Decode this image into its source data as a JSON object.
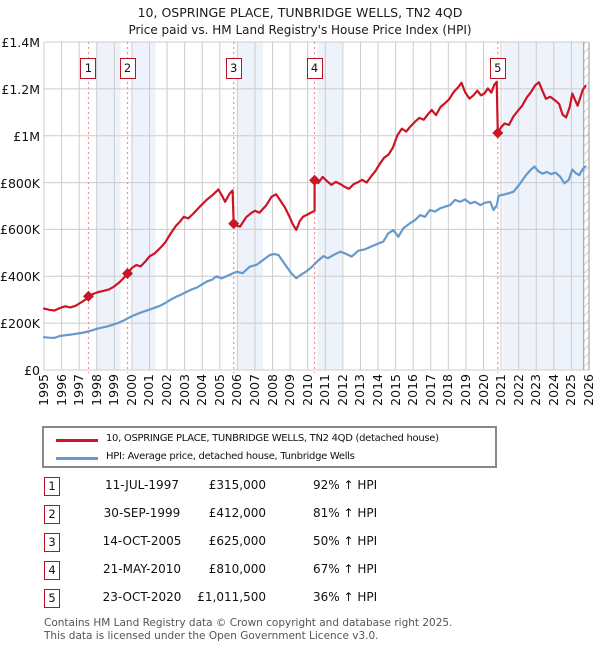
{
  "header": {
    "title": "10, OSPRINGE PLACE, TUNBRIDGE WELLS, TN2 4QD",
    "subtitle": "Price paid vs. HM Land Registry's House Price Index (HPI)"
  },
  "legend": {
    "items": [
      {
        "label": "10, OSPRINGE PLACE, TUNBRIDGE WELLS, TN2 4QD (detached house)",
        "color": "#cc1424"
      },
      {
        "label": "HPI: Average price, detached house, Tunbridge Wells",
        "color": "#6699cc"
      }
    ]
  },
  "transactions": [
    {
      "n": "1",
      "date": "11-JUL-1997",
      "price": "£315,000",
      "hpi_diff": "92% ↑ HPI"
    },
    {
      "n": "2",
      "date": "30-SEP-1999",
      "price": "£412,000",
      "hpi_diff": "81% ↑ HPI"
    },
    {
      "n": "3",
      "date": "14-OCT-2005",
      "price": "£625,000",
      "hpi_diff": "50% ↑ HPI"
    },
    {
      "n": "4",
      "date": "21-MAY-2010",
      "price": "£810,000",
      "hpi_diff": "67% ↑ HPI"
    },
    {
      "n": "5",
      "date": "23-OCT-2020",
      "price": "£1,011,500",
      "hpi_diff": "36% ↑ HPI"
    }
  ],
  "footer": {
    "line1": "Contains HM Land Registry data © Crown copyright and database right 2025.",
    "line2": "This data is licensed under the Open Government Licence v3.0."
  },
  "chart_data": {
    "type": "line",
    "unit": "GBP thousands",
    "x_axis": {
      "min": 1995,
      "max": 2026,
      "tick_years": [
        1995,
        1996,
        1997,
        1998,
        1999,
        2000,
        2001,
        2002,
        2003,
        2004,
        2005,
        2006,
        2007,
        2008,
        2009,
        2010,
        2011,
        2012,
        2013,
        2014,
        2015,
        2016,
        2017,
        2018,
        2019,
        2020,
        2021,
        2022,
        2023,
        2024,
        2025,
        2026
      ]
    },
    "y_axis": {
      "min": 0,
      "max": 1400,
      "ticks": [
        {
          "v": 0,
          "label": "£0"
        },
        {
          "v": 200,
          "label": "£200K"
        },
        {
          "v": 400,
          "label": "£400K"
        },
        {
          "v": 600,
          "label": "£600K"
        },
        {
          "v": 800,
          "label": "£800K"
        },
        {
          "v": 1000,
          "label": "£1M"
        },
        {
          "v": 1200,
          "label": "£1.2M"
        },
        {
          "v": 1400,
          "label": "£1.4M"
        }
      ]
    },
    "bands": [
      [
        1998.0,
        1999.35
      ],
      [
        2000.0,
        2001.35
      ],
      [
        2006.0,
        2007.45
      ],
      [
        2010.55,
        2011.95
      ],
      [
        2021.1,
        2025.7
      ]
    ],
    "hatch": [
      2025.7,
      2026.0
    ],
    "band_color": "#edf2fb",
    "grid_color": "#cccccc",
    "sale_line_color": "#f28f8f",
    "sales": [
      {
        "n": "1",
        "year": 1997.53,
        "price_k": 315
      },
      {
        "n": "2",
        "year": 1999.75,
        "price_k": 412
      },
      {
        "n": "3",
        "year": 2005.79,
        "price_k": 625
      },
      {
        "n": "4",
        "year": 2010.39,
        "price_k": 810
      },
      {
        "n": "5",
        "year": 2020.81,
        "price_k": 1011.5
      }
    ],
    "series": [
      {
        "name": "price-paid",
        "color": "#cc1424",
        "width": 2.2,
        "points": [
          [
            1995.0,
            262
          ],
          [
            1995.3,
            257
          ],
          [
            1995.6,
            254
          ],
          [
            1995.9,
            264
          ],
          [
            1996.2,
            272
          ],
          [
            1996.5,
            267
          ],
          [
            1996.8,
            274
          ],
          [
            1997.1,
            288
          ],
          [
            1997.35,
            300
          ],
          [
            1997.53,
            315
          ],
          [
            1997.8,
            325
          ],
          [
            1998.1,
            333
          ],
          [
            1998.4,
            338
          ],
          [
            1998.7,
            344
          ],
          [
            1999.0,
            357
          ],
          [
            1999.3,
            375
          ],
          [
            1999.55,
            394
          ],
          [
            1999.75,
            412
          ],
          [
            2000.0,
            436
          ],
          [
            2000.25,
            448
          ],
          [
            2000.5,
            442
          ],
          [
            2000.75,
            462
          ],
          [
            2001.0,
            485
          ],
          [
            2001.3,
            498
          ],
          [
            2001.6,
            520
          ],
          [
            2001.9,
            545
          ],
          [
            2002.2,
            582
          ],
          [
            2002.5,
            615
          ],
          [
            2002.75,
            635
          ],
          [
            2002.95,
            654
          ],
          [
            2003.2,
            647
          ],
          [
            2003.5,
            668
          ],
          [
            2003.85,
            696
          ],
          [
            2004.25,
            726
          ],
          [
            2004.6,
            748
          ],
          [
            2004.92,
            771
          ],
          [
            2005.1,
            747
          ],
          [
            2005.3,
            718
          ],
          [
            2005.55,
            752
          ],
          [
            2005.73,
            766
          ],
          [
            2005.79,
            625
          ],
          [
            2006.0,
            615
          ],
          [
            2006.15,
            612
          ],
          [
            2006.5,
            652
          ],
          [
            2006.8,
            671
          ],
          [
            2007.0,
            680
          ],
          [
            2007.25,
            671
          ],
          [
            2007.65,
            704
          ],
          [
            2007.95,
            740
          ],
          [
            2008.2,
            750
          ],
          [
            2008.45,
            722
          ],
          [
            2008.7,
            694
          ],
          [
            2008.95,
            656
          ],
          [
            2009.15,
            622
          ],
          [
            2009.35,
            598
          ],
          [
            2009.55,
            636
          ],
          [
            2009.75,
            655
          ],
          [
            2009.95,
            662
          ],
          [
            2010.15,
            670
          ],
          [
            2010.39,
            680
          ],
          [
            2010.39,
            810
          ],
          [
            2010.6,
            798
          ],
          [
            2010.85,
            824
          ],
          [
            2011.1,
            806
          ],
          [
            2011.35,
            790
          ],
          [
            2011.6,
            803
          ],
          [
            2011.85,
            794
          ],
          [
            2012.1,
            782
          ],
          [
            2012.35,
            773
          ],
          [
            2012.6,
            792
          ],
          [
            2012.85,
            801
          ],
          [
            2013.1,
            812
          ],
          [
            2013.35,
            800
          ],
          [
            2013.6,
            826
          ],
          [
            2013.85,
            849
          ],
          [
            2014.1,
            880
          ],
          [
            2014.35,
            906
          ],
          [
            2014.6,
            920
          ],
          [
            2014.85,
            950
          ],
          [
            2015.1,
            1002
          ],
          [
            2015.35,
            1030
          ],
          [
            2015.6,
            1018
          ],
          [
            2015.85,
            1040
          ],
          [
            2016.1,
            1060
          ],
          [
            2016.35,
            1076
          ],
          [
            2016.6,
            1068
          ],
          [
            2016.85,
            1092
          ],
          [
            2017.05,
            1110
          ],
          [
            2017.3,
            1088
          ],
          [
            2017.55,
            1122
          ],
          [
            2017.8,
            1138
          ],
          [
            2018.05,
            1156
          ],
          [
            2018.3,
            1186
          ],
          [
            2018.55,
            1206
          ],
          [
            2018.75,
            1226
          ],
          [
            2018.95,
            1186
          ],
          [
            2019.2,
            1158
          ],
          [
            2019.45,
            1174
          ],
          [
            2019.65,
            1192
          ],
          [
            2019.85,
            1172
          ],
          [
            2020.05,
            1180
          ],
          [
            2020.25,
            1202
          ],
          [
            2020.45,
            1184
          ],
          [
            2020.6,
            1216
          ],
          [
            2020.75,
            1230
          ],
          [
            2020.81,
            1011.5
          ],
          [
            2021.0,
            1036
          ],
          [
            2021.2,
            1052
          ],
          [
            2021.45,
            1046
          ],
          [
            2021.7,
            1082
          ],
          [
            2021.95,
            1106
          ],
          [
            2022.2,
            1128
          ],
          [
            2022.45,
            1162
          ],
          [
            2022.7,
            1186
          ],
          [
            2022.95,
            1216
          ],
          [
            2023.15,
            1228
          ],
          [
            2023.35,
            1192
          ],
          [
            2023.55,
            1158
          ],
          [
            2023.8,
            1166
          ],
          [
            2024.05,
            1152
          ],
          [
            2024.3,
            1136
          ],
          [
            2024.5,
            1090
          ],
          [
            2024.7,
            1078
          ],
          [
            2024.9,
            1122
          ],
          [
            2025.05,
            1180
          ],
          [
            2025.2,
            1154
          ],
          [
            2025.35,
            1128
          ],
          [
            2025.5,
            1162
          ],
          [
            2025.65,
            1196
          ],
          [
            2025.8,
            1212
          ]
        ]
      },
      {
        "name": "hpi",
        "color": "#6699cc",
        "width": 2.2,
        "points": [
          [
            1995.0,
            140
          ],
          [
            1995.3,
            138
          ],
          [
            1995.6,
            137
          ],
          [
            1995.9,
            145
          ],
          [
            1996.2,
            148
          ],
          [
            1996.5,
            151
          ],
          [
            1996.8,
            154
          ],
          [
            1997.1,
            158
          ],
          [
            1997.4,
            162
          ],
          [
            1997.7,
            168
          ],
          [
            1998.0,
            176
          ],
          [
            1998.3,
            181
          ],
          [
            1998.6,
            186
          ],
          [
            1998.9,
            193
          ],
          [
            1999.2,
            200
          ],
          [
            1999.5,
            210
          ],
          [
            1999.8,
            222
          ],
          [
            2000.1,
            233
          ],
          [
            2000.4,
            242
          ],
          [
            2000.7,
            250
          ],
          [
            2001.0,
            258
          ],
          [
            2001.3,
            266
          ],
          [
            2001.6,
            274
          ],
          [
            2001.9,
            286
          ],
          [
            2002.2,
            300
          ],
          [
            2002.5,
            312
          ],
          [
            2002.8,
            322
          ],
          [
            2003.1,
            333
          ],
          [
            2003.4,
            344
          ],
          [
            2003.7,
            352
          ],
          [
            2004.0,
            366
          ],
          [
            2004.3,
            379
          ],
          [
            2004.55,
            385
          ],
          [
            2004.8,
            400
          ],
          [
            2005.1,
            391
          ],
          [
            2005.4,
            401
          ],
          [
            2005.67,
            410
          ],
          [
            2005.96,
            419
          ],
          [
            2006.3,
            413
          ],
          [
            2006.7,
            441
          ],
          [
            2007.1,
            449
          ],
          [
            2007.45,
            469
          ],
          [
            2007.85,
            491
          ],
          [
            2008.1,
            495
          ],
          [
            2008.35,
            490
          ],
          [
            2008.6,
            462
          ],
          [
            2008.9,
            430
          ],
          [
            2009.1,
            410
          ],
          [
            2009.35,
            392
          ],
          [
            2009.6,
            406
          ],
          [
            2009.9,
            420
          ],
          [
            2010.15,
            434
          ],
          [
            2010.39,
            452
          ],
          [
            2010.6,
            468
          ],
          [
            2010.9,
            486
          ],
          [
            2011.15,
            477
          ],
          [
            2011.45,
            490
          ],
          [
            2011.84,
            505
          ],
          [
            2012.15,
            497
          ],
          [
            2012.5,
            484
          ],
          [
            2012.88,
            509
          ],
          [
            2013.26,
            515
          ],
          [
            2013.83,
            534
          ],
          [
            2014.3,
            548
          ],
          [
            2014.58,
            583
          ],
          [
            2014.87,
            597
          ],
          [
            2015.15,
            569
          ],
          [
            2015.44,
            605
          ],
          [
            2015.82,
            626
          ],
          [
            2016.1,
            640
          ],
          [
            2016.39,
            661
          ],
          [
            2016.67,
            654
          ],
          [
            2016.95,
            683
          ],
          [
            2017.24,
            676
          ],
          [
            2017.53,
            690
          ],
          [
            2017.81,
            697
          ],
          [
            2018.1,
            704
          ],
          [
            2018.38,
            726
          ],
          [
            2018.67,
            718
          ],
          [
            2018.95,
            728
          ],
          [
            2019.24,
            711
          ],
          [
            2019.52,
            718
          ],
          [
            2019.81,
            704
          ],
          [
            2020.09,
            714
          ],
          [
            2020.38,
            718
          ],
          [
            2020.57,
            683
          ],
          [
            2020.76,
            704
          ],
          [
            2020.86,
            744
          ],
          [
            2021.1,
            748
          ],
          [
            2021.43,
            754
          ],
          [
            2021.71,
            761
          ],
          [
            2022.09,
            797
          ],
          [
            2022.4,
            830
          ],
          [
            2022.7,
            856
          ],
          [
            2022.9,
            868
          ],
          [
            2023.1,
            850
          ],
          [
            2023.35,
            838
          ],
          [
            2023.6,
            845
          ],
          [
            2023.85,
            836
          ],
          [
            2024.1,
            842
          ],
          [
            2024.35,
            826
          ],
          [
            2024.6,
            797
          ],
          [
            2024.85,
            812
          ],
          [
            2025.05,
            856
          ],
          [
            2025.25,
            840
          ],
          [
            2025.45,
            832
          ],
          [
            2025.65,
            858
          ],
          [
            2025.8,
            868
          ]
        ]
      }
    ]
  }
}
